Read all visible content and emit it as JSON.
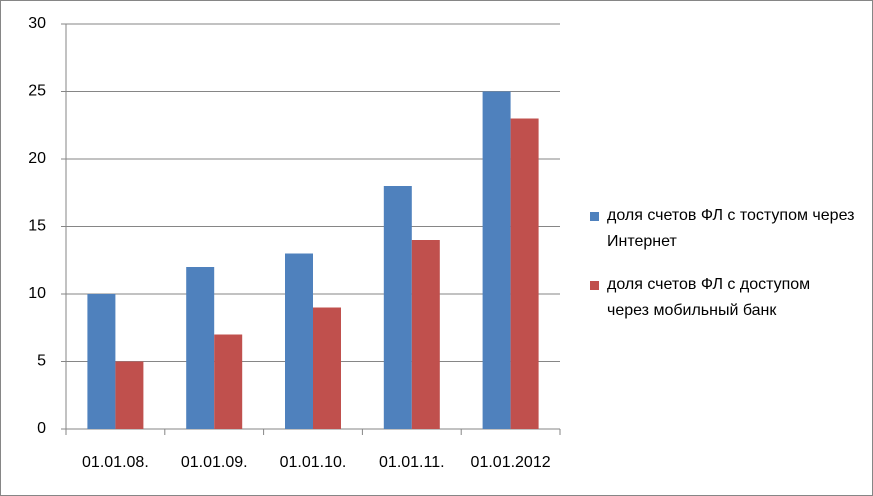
{
  "chart_data": {
    "type": "bar",
    "categories": [
      "01.01.08.",
      "01.01.09.",
      "01.01.10.",
      "01.01.11.",
      "01.01.2012"
    ],
    "series": [
      {
        "name": "доля счетов ФЛ с тоступом через Интернет",
        "color": "#4f81bd",
        "values": [
          10,
          12,
          13,
          18,
          25
        ]
      },
      {
        "name": "доля счетов ФЛ с доступом через мобильный банк",
        "color": "#c0504d",
        "values": [
          5,
          7,
          9,
          14,
          23
        ]
      }
    ],
    "ylim": [
      0,
      30
    ],
    "yticks": [
      0,
      5,
      10,
      15,
      20,
      25,
      30
    ],
    "grid": true,
    "legend": "right"
  }
}
